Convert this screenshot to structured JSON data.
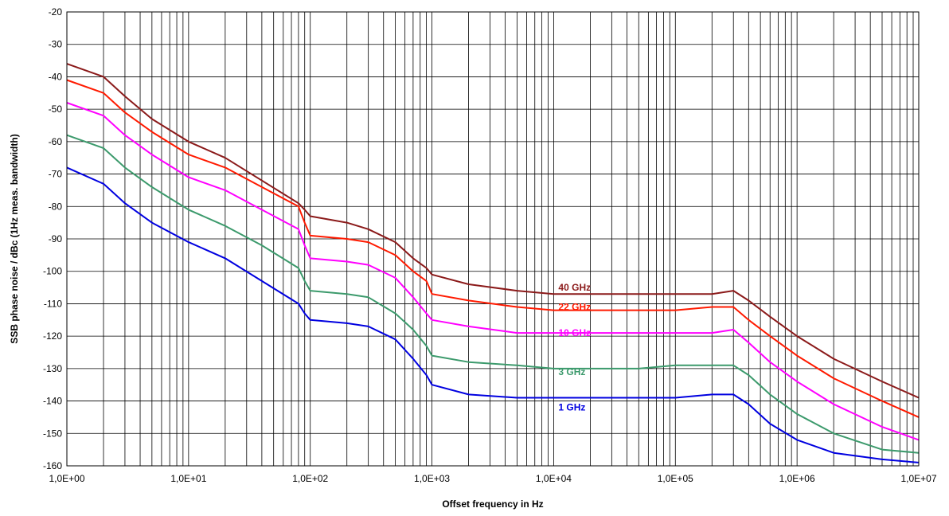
{
  "chart_data": {
    "type": "line",
    "title": "",
    "xlabel": "Offset frequency in Hz",
    "ylabel": "SSB phase noise / dBc (1Hz meas. bandwidth)",
    "x_scale": "log",
    "xlim": [
      1,
      10000000
    ],
    "ylim": [
      -160,
      -20
    ],
    "y_tick_step": 10,
    "grid": true,
    "legend": "none",
    "x_tick_labels": [
      "1,0E+00",
      "1,0E+01",
      "1,0E+02",
      "1,0E+03",
      "1,0E+04",
      "1,0E+05",
      "1,0E+06",
      "1,0E+07"
    ],
    "y_tick_labels": [
      "-20",
      "-30",
      "-40",
      "-50",
      "-60",
      "-70",
      "-80",
      "-90",
      "-100",
      "-110",
      "-120",
      "-130",
      "-140",
      "-150",
      "-160"
    ],
    "x": [
      1,
      2,
      3,
      5,
      10,
      20,
      40,
      80,
      90,
      100,
      200,
      300,
      500,
      700,
      900,
      1000,
      2000,
      5000,
      10000,
      20000,
      50000,
      100000,
      200000,
      300000,
      400000,
      600000,
      1000000,
      2000000,
      5000000,
      10000000
    ],
    "series": [
      {
        "name": "40 GHz",
        "color": "#8B1A1A",
        "label_at": [
          10000,
          -105
        ],
        "values": [
          -36,
          -40,
          -46,
          -53,
          -60,
          -65,
          -72,
          -79,
          -81,
          -83,
          -85,
          -87,
          -91,
          -96,
          -99,
          -101,
          -104,
          -106,
          -107,
          -107,
          -107,
          -107,
          -107,
          -106,
          -109,
          -114,
          -120,
          -127,
          -134,
          -139
        ]
      },
      {
        "name": "22 GHz",
        "color": "#FF1A00",
        "label_at": [
          10000,
          -111
        ],
        "values": [
          -41,
          -45,
          -51,
          -57,
          -64,
          -68,
          -74,
          -80,
          -85,
          -89,
          -90,
          -91,
          -95,
          -100,
          -103,
          -107,
          -109,
          -111,
          -112,
          -112,
          -112,
          -112,
          -111,
          -111,
          -115,
          -120,
          -126,
          -133,
          -140,
          -145
        ]
      },
      {
        "name": "10 GHz",
        "color": "#FF00FF",
        "label_at": [
          10000,
          -119
        ],
        "values": [
          -48,
          -52,
          -58,
          -64,
          -71,
          -75,
          -81,
          -87,
          -92,
          -96,
          -97,
          -98,
          -102,
          -108,
          -113,
          -115,
          -117,
          -119,
          -119,
          -119,
          -119,
          -119,
          -119,
          -118,
          -122,
          -128,
          -134,
          -141,
          -148,
          -152
        ]
      },
      {
        "name": "3 GHz",
        "color": "#3C9A6C",
        "label_at": [
          10000,
          -131
        ],
        "values": [
          -58,
          -62,
          -68,
          -74,
          -81,
          -86,
          -92,
          -99,
          -103,
          -106,
          -107,
          -108,
          -113,
          -118,
          -123,
          -126,
          -128,
          -129,
          -130,
          -130,
          -130,
          -129,
          -129,
          -129,
          -132,
          -138,
          -144,
          -150,
          -155,
          -156
        ]
      },
      {
        "name": "1 GHz",
        "color": "#0000E0",
        "label_at": [
          10000,
          -142
        ],
        "values": [
          -68,
          -73,
          -79,
          -85,
          -91,
          -96,
          -103,
          -110,
          -113,
          -115,
          -116,
          -117,
          -121,
          -127,
          -132,
          -135,
          -138,
          -139,
          -139,
          -139,
          -139,
          -139,
          -138,
          -138,
          -141,
          -147,
          -152,
          -156,
          -158,
          -159
        ]
      }
    ]
  }
}
